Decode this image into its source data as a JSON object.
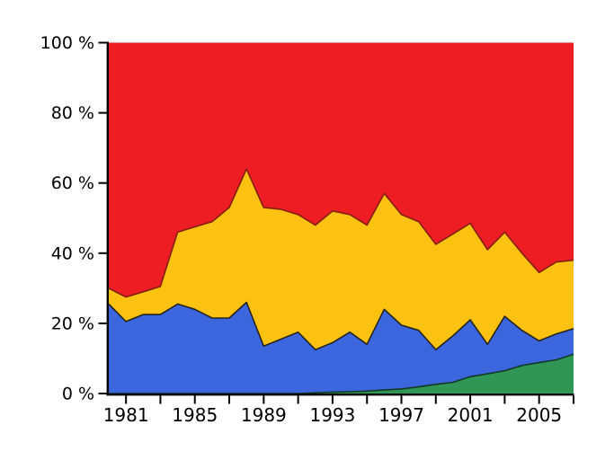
{
  "chart_data": {
    "type": "area",
    "stacked": true,
    "title": "",
    "xlabel": "",
    "ylabel": "",
    "xlim": [
      1980,
      2007
    ],
    "ylim": [
      0,
      100
    ],
    "grid": false,
    "legend": "none",
    "x": [
      1980,
      1981,
      1982,
      1983,
      1984,
      1985,
      1986,
      1987,
      1988,
      1989,
      1990,
      1991,
      1992,
      1993,
      1994,
      1995,
      1996,
      1997,
      1998,
      1999,
      2000,
      2001,
      2002,
      2003,
      2004,
      2005,
      2006,
      2007
    ],
    "series": [
      {
        "name": "green",
        "color": "#2f9655",
        "boundary_color": "#123823",
        "values": [
          0,
          0,
          0,
          0,
          0,
          0,
          0,
          0,
          0,
          0,
          0,
          0,
          0.2,
          0.4,
          0.5,
          0.7,
          1.0,
          1.3,
          1.9,
          2.6,
          3.2,
          4.8,
          5.6,
          6.5,
          8.0,
          8.8,
          9.6,
          11.2
        ]
      },
      {
        "name": "blue",
        "color": "#3c66dd",
        "boundary_color": "#24231d",
        "values": [
          25.5,
          20.5,
          22.5,
          22.5,
          25.5,
          24,
          21.5,
          21.5,
          26,
          13.5,
          15.5,
          17.5,
          12.3,
          14.1,
          17.0,
          13.3,
          23.0,
          18.2,
          16.1,
          9.9,
          13.3,
          16.2,
          8.4,
          15.5,
          10.0,
          6.2,
          7.4,
          7.3
        ]
      },
      {
        "name": "yellow",
        "color": "#fcc211",
        "boundary_color": "#82200e",
        "values": [
          4.5,
          7,
          6.5,
          8,
          20.5,
          23.5,
          27.5,
          31.5,
          38,
          39.5,
          37,
          33.5,
          35.5,
          37.5,
          33.5,
          34,
          33,
          31.5,
          31,
          30,
          29,
          27.5,
          27,
          24,
          22,
          19.5,
          20.5,
          19.5
        ]
      },
      {
        "name": "red",
        "color": "#ee1c23",
        "boundary_color": "",
        "values": [
          70,
          72.5,
          71,
          69.5,
          54,
          52.5,
          51,
          47,
          36,
          47,
          47.5,
          49,
          52,
          48,
          49,
          52,
          43,
          49,
          51,
          57.5,
          54.5,
          51.5,
          59,
          54,
          60,
          65.5,
          62.5,
          62
        ]
      }
    ],
    "y_ticks": [
      {
        "value": 0,
        "label": "0 %"
      },
      {
        "value": 20,
        "label": "20 %"
      },
      {
        "value": 40,
        "label": "40 %"
      },
      {
        "value": 60,
        "label": "60 %"
      },
      {
        "value": 80,
        "label": "80 %"
      },
      {
        "value": 100,
        "label": "100 %"
      }
    ],
    "x_ticks": [
      1981,
      1983,
      1985,
      1987,
      1989,
      1991,
      1993,
      1995,
      1997,
      1999,
      2001,
      2003,
      2005,
      2007
    ],
    "x_tick_labels": [
      {
        "year": 1981,
        "label": "1981"
      },
      {
        "year": 1985,
        "label": "1985"
      },
      {
        "year": 1989,
        "label": "1989"
      },
      {
        "year": 1993,
        "label": "1993"
      },
      {
        "year": 1997,
        "label": "1997"
      },
      {
        "year": 2001,
        "label": "2001"
      },
      {
        "year": 2005,
        "label": "2005"
      }
    ],
    "axis_color": "#000000"
  }
}
